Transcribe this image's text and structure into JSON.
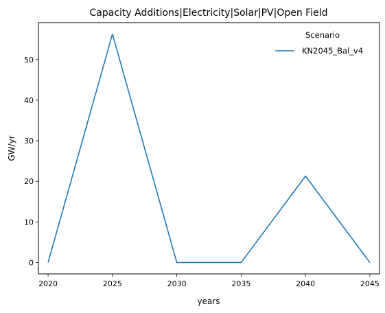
{
  "chart_data": {
    "type": "line",
    "title": "Capacity Additions|Electricity|Solar|PV|Open Field",
    "xlabel": "years",
    "ylabel": "GW/yr",
    "x": [
      2020,
      2025,
      2030,
      2035,
      2040,
      2045
    ],
    "x_ticks": [
      "2020",
      "2025",
      "2030",
      "2035",
      "2040",
      "2045"
    ],
    "y_ticks": [
      "0",
      "10",
      "20",
      "30",
      "40",
      "50"
    ],
    "xlim": [
      2019.25,
      2045.75
    ],
    "ylim": [
      -2.8,
      59.1
    ],
    "grid": false,
    "legend": {
      "title": "Scenario",
      "placement": "top-right"
    },
    "series": [
      {
        "name": "KN2045_Bal_v4",
        "color": "#1f77b4",
        "values": [
          0,
          56.3,
          0,
          0,
          21.3,
          0
        ]
      }
    ]
  }
}
